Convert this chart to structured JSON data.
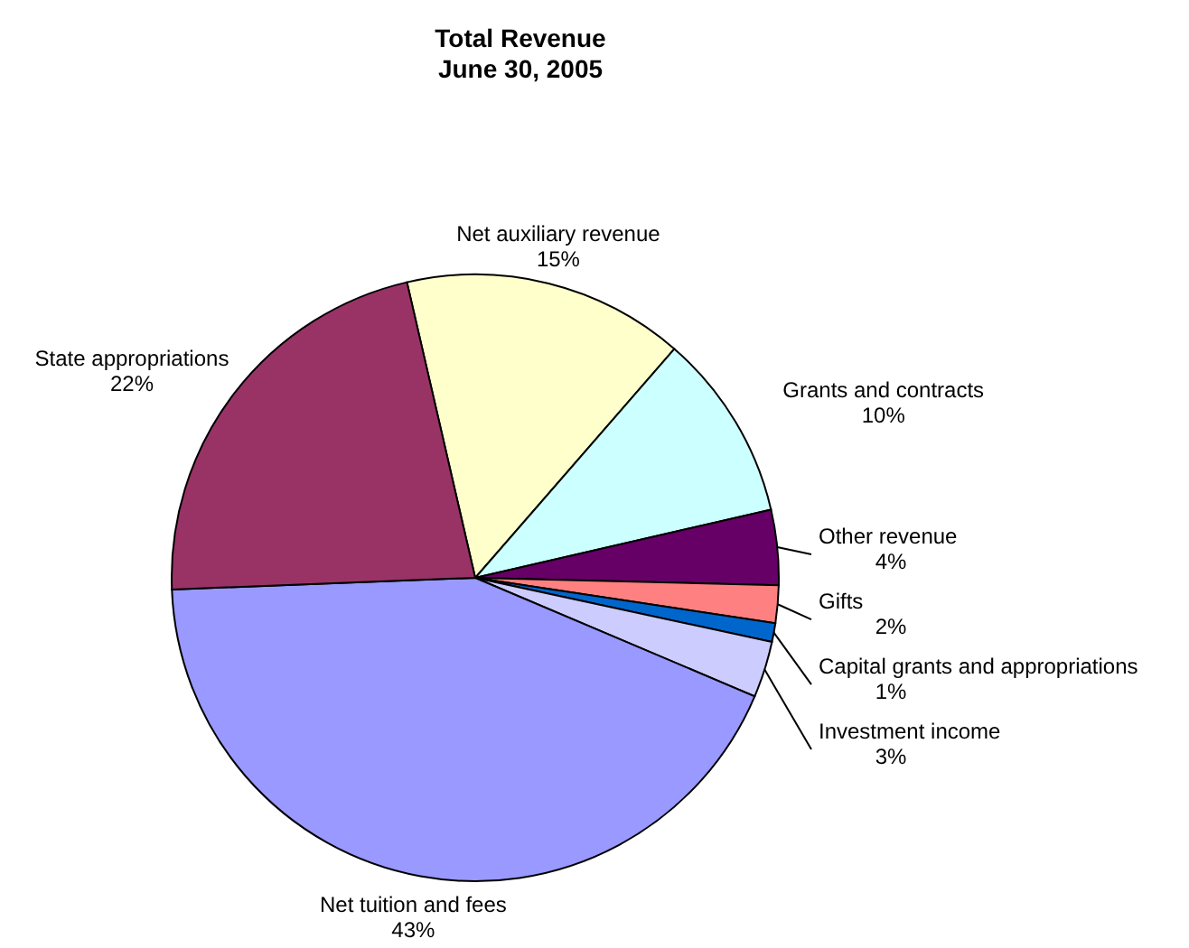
{
  "chart_data": {
    "type": "pie",
    "title": "Total Revenue",
    "subtitle": "June 30, 2005",
    "categories": [
      "Net auxiliary revenue",
      "Grants and contracts",
      "Other revenue",
      "Gifts",
      "Capital grants and appropriations",
      "Investment income",
      "Net tuition and fees",
      "State appropriations"
    ],
    "values": [
      15,
      10,
      4,
      2,
      1,
      3,
      43,
      22
    ],
    "value_labels": [
      "15%",
      "10%",
      "4%",
      "2%",
      "1%",
      "3%",
      "43%",
      "22%"
    ],
    "colors": [
      "#ffffcc",
      "#ccffff",
      "#660066",
      "#ff8080",
      "#0066cc",
      "#ccccff",
      "#9999ff",
      "#993366"
    ],
    "legend": false
  }
}
